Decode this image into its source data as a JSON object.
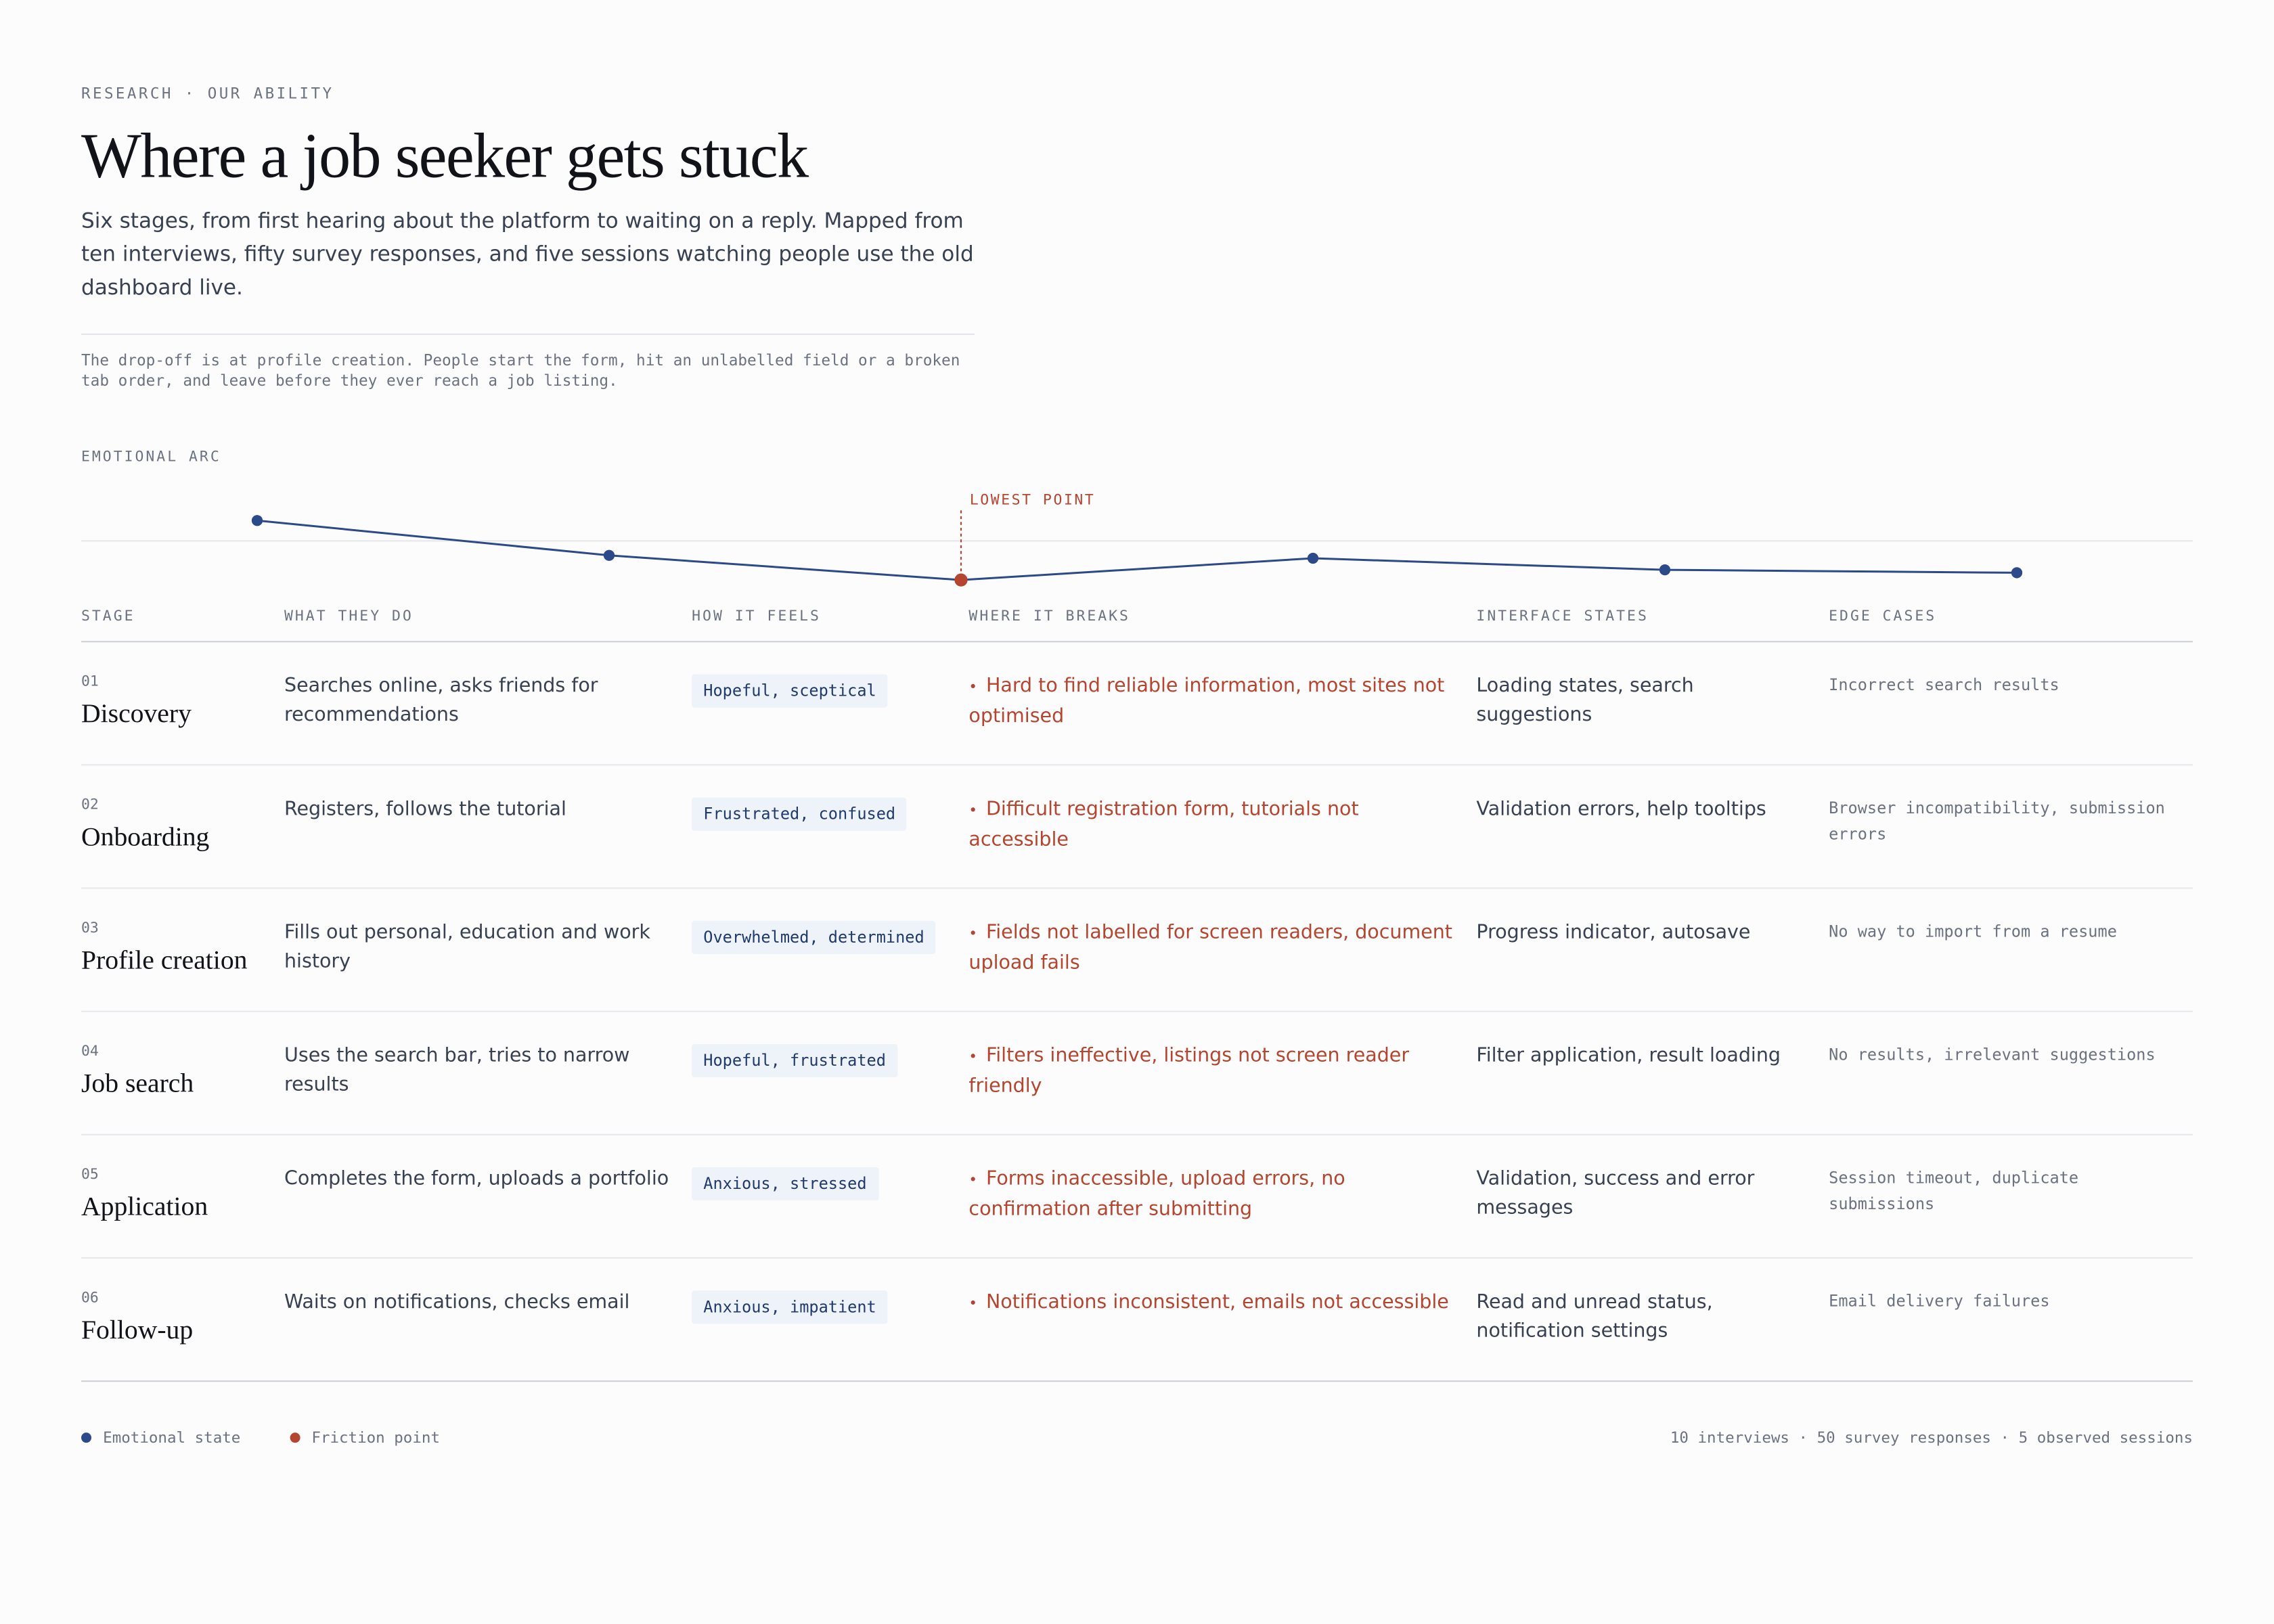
{
  "header": {
    "eyebrow": "RESEARCH · OUR ABILITY",
    "title": "Where a job seeker gets stuck",
    "intro": "Six stages, from first hearing about the platform to waiting on a reply. Mapped from ten interviews, fifty survey responses, and five sessions watching people use the old dashboard live.",
    "note": "The drop-off is at profile creation. People start the form, hit an unlabelled field or a broken tab order, and leave before they ever reach a job listing."
  },
  "arc": {
    "label": "EMOTIONAL ARC",
    "annotation": "LOWEST POINT",
    "values": [
      1.4,
      -1.0,
      -2.7,
      -1.2,
      -2.0,
      -2.2
    ],
    "color": "#2c4a8a",
    "friction_color": "#b5452f"
  },
  "table": {
    "headers": [
      "STAGE",
      "WHAT THEY DO",
      "HOW IT FEELS",
      "WHERE IT BREAKS",
      "INTERFACE STATES",
      "EDGE CASES"
    ],
    "rows": [
      {
        "num": "01",
        "stage": "Discovery",
        "does": "Searches online, asks friends for recommendations",
        "feels": "Hopeful, sceptical",
        "breaks": "Hard to find reliable information, most sites not optimised",
        "states": "Loading states, search suggestions",
        "edge": "Incorrect search results"
      },
      {
        "num": "02",
        "stage": "Onboarding",
        "does": "Registers, follows the tutorial",
        "feels": "Frustrated, confused",
        "breaks": "Difficult registration form, tutorials not accessible",
        "states": "Validation errors, help tooltips",
        "edge": "Browser incompatibility, submission errors"
      },
      {
        "num": "03",
        "stage": "Profile creation",
        "does": "Fills out personal, education and work history",
        "feels": "Overwhelmed, determined",
        "breaks": "Fields not labelled for screen readers, document upload fails",
        "states": "Progress indicator, autosave",
        "edge": "No way to import from a resume"
      },
      {
        "num": "04",
        "stage": "Job search",
        "does": "Uses the search bar, tries to narrow results",
        "feels": "Hopeful, frustrated",
        "breaks": "Filters ineffective, listings not screen reader friendly",
        "states": "Filter application, result loading",
        "edge": "No results, irrelevant suggestions"
      },
      {
        "num": "05",
        "stage": "Application",
        "does": "Completes the form, uploads a portfolio",
        "feels": "Anxious, stressed",
        "breaks": "Forms inaccessible, upload errors, no confirmation after submitting",
        "states": "Validation, success and error messages",
        "edge": "Session timeout, duplicate submissions"
      },
      {
        "num": "06",
        "stage": "Follow-up",
        "does": "Waits on notifications, checks email",
        "feels": "Anxious, impatient",
        "breaks": "Notifications inconsistent, emails not accessible",
        "states": "Read and unread status, notification settings",
        "edge": "Email delivery failures"
      }
    ]
  },
  "legend": [
    "Emotional state",
    "Friction point"
  ],
  "footer": "10 interviews · 50 survey responses · 5 observed sessions"
}
